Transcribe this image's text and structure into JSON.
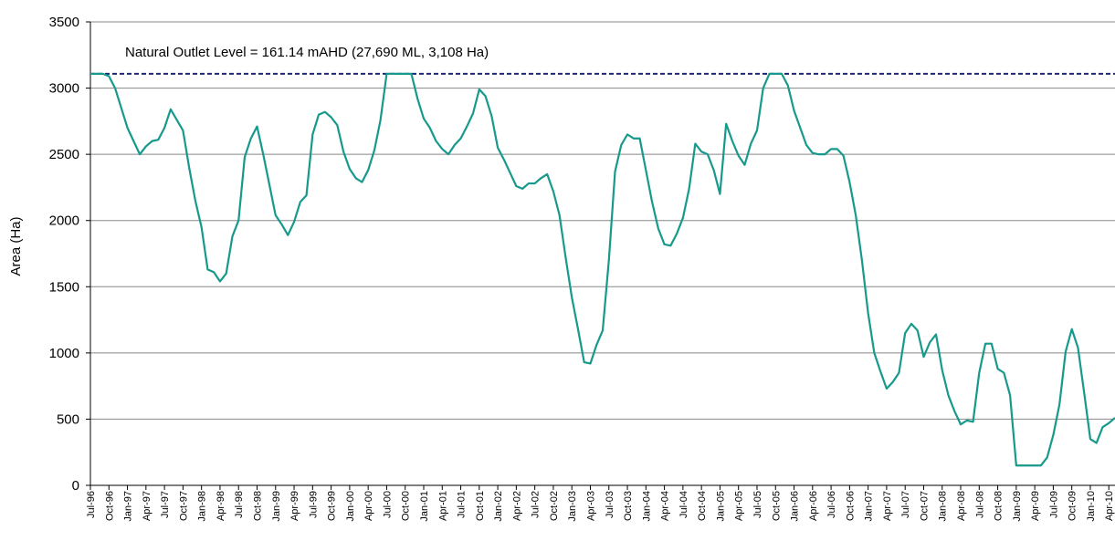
{
  "chart_data": {
    "type": "line",
    "ylabel": "Area (Ha)",
    "ylim": [
      0,
      3500
    ],
    "yticks": [
      0,
      500,
      1000,
      1500,
      2000,
      2500,
      3000,
      3500
    ],
    "grid": true,
    "reference_line": {
      "value": 3108,
      "label": "Natural Outlet Level = 161.14 mAHD (27,690 ML, 3,108 Ha)",
      "color": "#1a237e"
    },
    "categories": [
      "Jul-96",
      null,
      null,
      "Oct-96",
      null,
      null,
      "Jan-97",
      null,
      null,
      "Apr-97",
      null,
      null,
      "Jul-97",
      null,
      null,
      "Oct-97",
      null,
      null,
      "Jan-98",
      null,
      null,
      "Apr-98",
      null,
      null,
      "Jul-98",
      null,
      null,
      "Oct-98",
      null,
      null,
      "Jan-99",
      null,
      null,
      "Apr-99",
      null,
      null,
      "Jul-99",
      null,
      null,
      "Oct-99",
      null,
      null,
      "Jan-00",
      null,
      null,
      "Apr-00",
      null,
      null,
      "Jul-00",
      null,
      null,
      "Oct-00",
      null,
      null,
      "Jan-01",
      null,
      null,
      "Apr-01",
      null,
      null,
      "Jul-01",
      null,
      null,
      "Oct-01",
      null,
      null,
      "Jan-02",
      null,
      null,
      "Apr-02",
      null,
      null,
      "Jul-02",
      null,
      null,
      "Oct-02",
      null,
      null,
      "Jan-03",
      null,
      null,
      "Apr-03",
      null,
      null,
      "Jul-03",
      null,
      null,
      "Oct-03",
      null,
      null,
      "Jan-04",
      null,
      null,
      "Apr-04",
      null,
      null,
      "Jul-04",
      null,
      null,
      "Oct-04",
      null,
      null,
      "Jan-05",
      null,
      null,
      "Apr-05",
      null,
      null,
      "Jul-05",
      null,
      null,
      "Oct-05",
      null,
      null,
      "Jan-06",
      null,
      null,
      "Apr-06",
      null,
      null,
      "Jul-06",
      null,
      null,
      "Oct-06",
      null,
      null,
      "Jan-07",
      null,
      null,
      "Apr-07",
      null,
      null,
      "Jul-07",
      null,
      null,
      "Oct-07",
      null,
      null,
      "Jan-08",
      null,
      null,
      "Apr-08",
      null,
      null,
      "Jul-08",
      null,
      null,
      "Oct-08",
      null,
      null,
      "Jan-09",
      null,
      null,
      "Apr-09",
      null,
      null,
      "Jul-09",
      null,
      null,
      "Oct-09",
      null,
      null,
      "Jan-10",
      null,
      null,
      "Apr-10",
      null
    ],
    "series": [
      {
        "name": "Area",
        "color": "#17998c",
        "values": [
          3108,
          3108,
          3108,
          3090,
          3000,
          2850,
          2700,
          2600,
          2500,
          2560,
          2600,
          2610,
          2700,
          2840,
          2760,
          2680,
          2400,
          2150,
          1950,
          1630,
          1610,
          1540,
          1600,
          1880,
          2000,
          2480,
          2620,
          2710,
          2500,
          2270,
          2040,
          1970,
          1890,
          1990,
          2140,
          2190,
          2650,
          2800,
          2820,
          2780,
          2720,
          2520,
          2390,
          2320,
          2290,
          2380,
          2530,
          2760,
          3108,
          3108,
          3108,
          3108,
          3108,
          2920,
          2770,
          2700,
          2600,
          2540,
          2500,
          2570,
          2620,
          2710,
          2810,
          2990,
          2940,
          2790,
          2550,
          2460,
          2360,
          2260,
          2240,
          2280,
          2280,
          2320,
          2350,
          2220,
          2040,
          1720,
          1420,
          1180,
          930,
          920,
          1060,
          1170,
          1700,
          2370,
          2570,
          2650,
          2620,
          2620,
          2380,
          2140,
          1940,
          1820,
          1810,
          1900,
          2020,
          2240,
          2580,
          2520,
          2500,
          2380,
          2200,
          2730,
          2600,
          2490,
          2420,
          2580,
          2680,
          3000,
          3108,
          3108,
          3108,
          3020,
          2830,
          2700,
          2570,
          2510,
          2500,
          2500,
          2540,
          2540,
          2490,
          2290,
          2040,
          1700,
          1300,
          1000,
          860,
          730,
          780,
          850,
          1150,
          1220,
          1170,
          970,
          1080,
          1140,
          870,
          680,
          560,
          460,
          490,
          480,
          850,
          1070,
          1070,
          880,
          850,
          680,
          150,
          150,
          150,
          150,
          150,
          210,
          380,
          610,
          1010,
          1180,
          1040,
          700,
          350,
          320,
          440,
          470,
          510
        ]
      }
    ]
  }
}
